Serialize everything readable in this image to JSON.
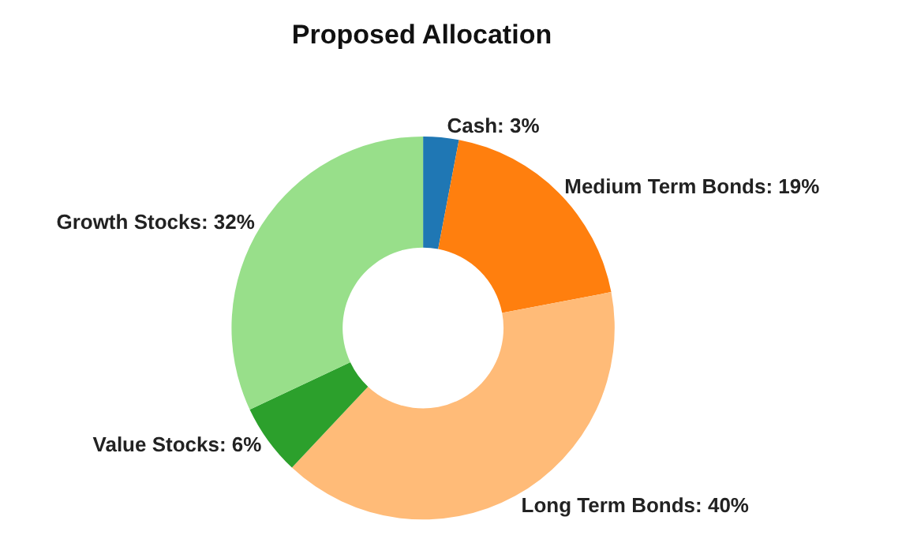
{
  "chart_data": {
    "type": "donut",
    "title": "Proposed Allocation",
    "categories": [
      "Cash: 3%",
      "Medium Term Bonds: 19%",
      "Long Term Bonds: 40%",
      "Value Stocks: 6%",
      "Growth Stocks: 32%"
    ],
    "values": [
      3,
      19,
      40,
      6,
      32
    ],
    "colors": [
      "#1f77b4",
      "#ff7f0e",
      "#ffbb78",
      "#2ca02c",
      "#98df8a"
    ],
    "legend": false
  }
}
